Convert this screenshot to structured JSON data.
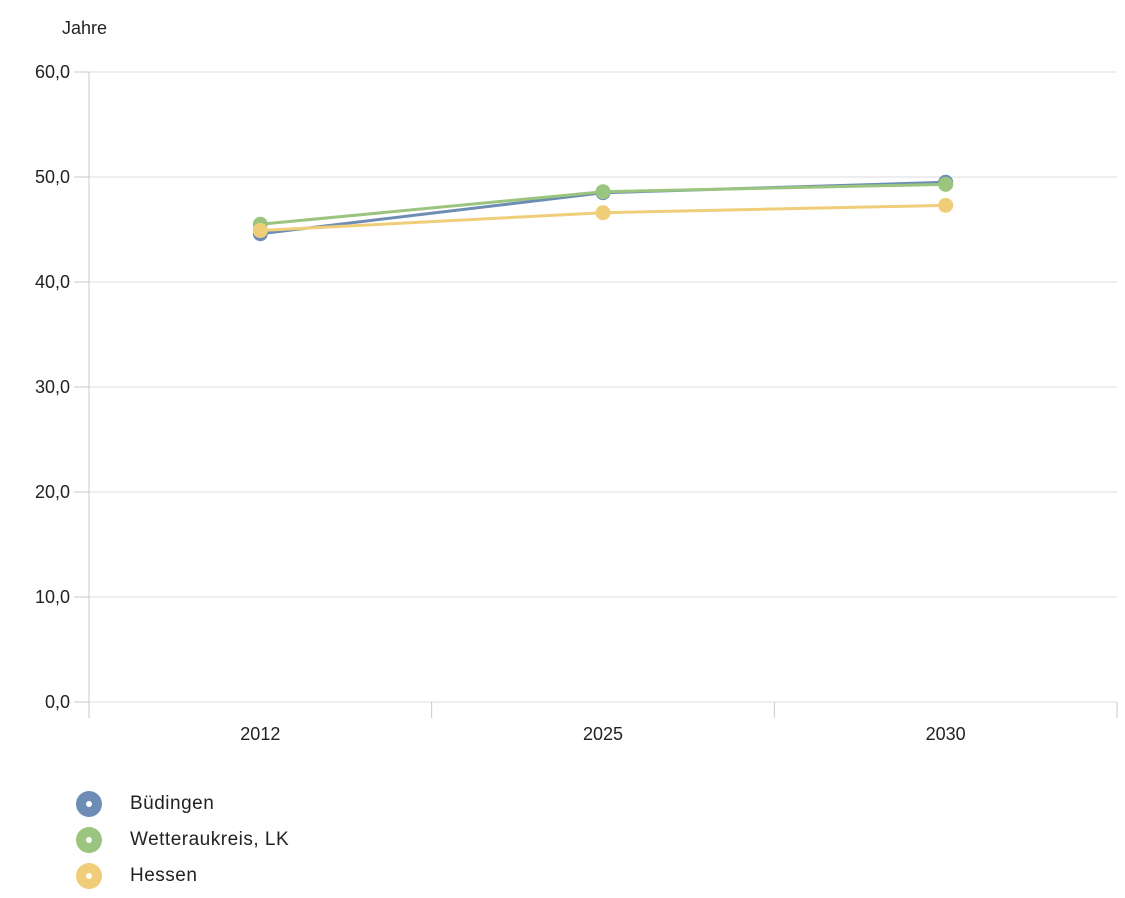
{
  "chart_data": {
    "type": "line",
    "ylabel": "Jahre",
    "ylim": [
      0,
      60
    ],
    "yticks": [
      "0,0",
      "10,0",
      "20,0",
      "30,0",
      "40,0",
      "50,0",
      "60,0"
    ],
    "categories": [
      "2012",
      "2025",
      "2030"
    ],
    "series": [
      {
        "name": "Büdingen",
        "color": "#6e8db5",
        "values": [
          44.6,
          48.5,
          49.5
        ]
      },
      {
        "name": "Wetteraukreis, LK",
        "color": "#9bc47f",
        "values": [
          45.5,
          48.6,
          49.3
        ]
      },
      {
        "name": "Hessen",
        "color": "#f0cd78",
        "values": [
          44.9,
          46.6,
          47.3
        ]
      }
    ],
    "grid": true,
    "legend_position": "bottom-left"
  }
}
